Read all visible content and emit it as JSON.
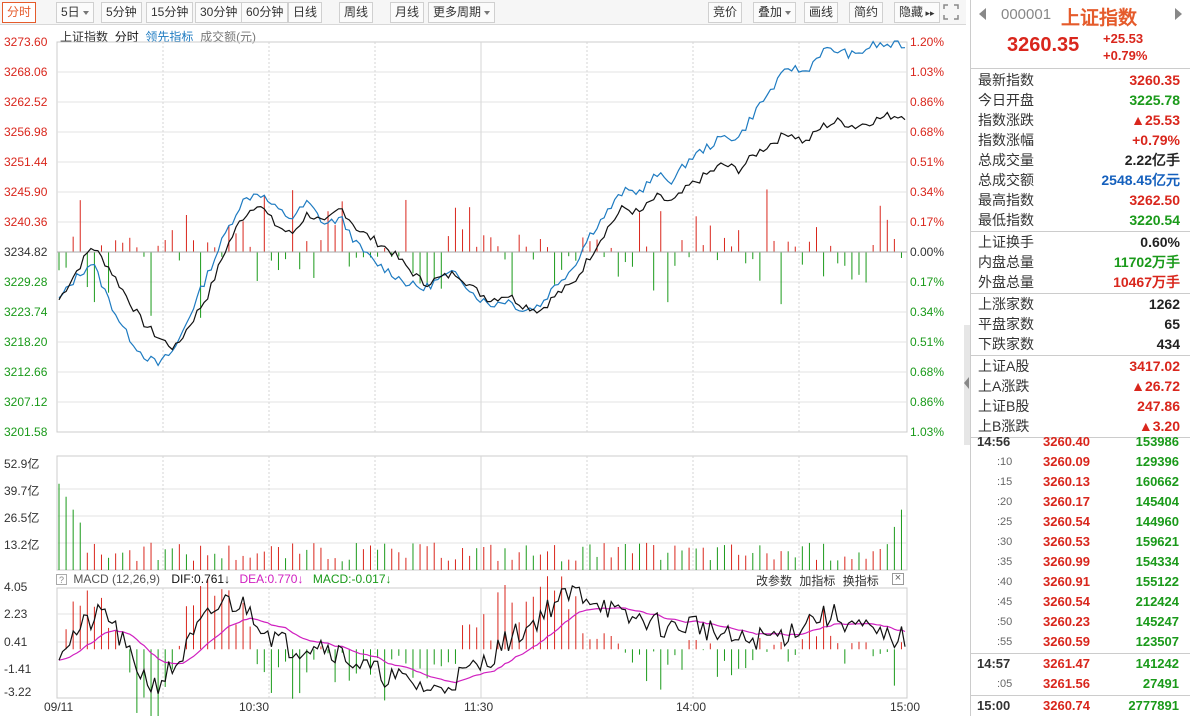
{
  "toolbar": {
    "left": [
      {
        "label": "分时",
        "active": true,
        "dropdown": false
      },
      {
        "label": "5日",
        "active": false,
        "dropdown": true
      },
      {
        "label": "5分钟",
        "active": false,
        "dropdown": false
      },
      {
        "label": "15分钟",
        "active": false,
        "dropdown": false
      },
      {
        "label": "30分钟",
        "active": false,
        "dropdown": false
      },
      {
        "label": "60分钟",
        "active": false,
        "dropdown": false
      },
      {
        "label": "日线",
        "active": false,
        "dropdown": false
      },
      {
        "label": "周线",
        "active": false,
        "dropdown": false
      },
      {
        "label": "月线",
        "active": false,
        "dropdown": false
      },
      {
        "label": "更多周期",
        "active": false,
        "dropdown": true
      }
    ],
    "right": [
      {
        "label": "竞价",
        "dropdown": false
      },
      {
        "label": "叠加",
        "dropdown": true
      },
      {
        "label": "画线",
        "dropdown": false
      },
      {
        "label": "简约",
        "dropdown": false
      },
      {
        "label": "隐藏",
        "dropdown": false,
        "icon": "double-right-arrow-icon"
      }
    ],
    "fullscreen_icon": "expand-icon"
  },
  "legend": {
    "name": "上证指数",
    "mode": "分时",
    "lead": "领先指标",
    "amount": "成交额(元)"
  },
  "price_axis": {
    "left": [
      "3273.60",
      "3268.06",
      "3262.52",
      "3256.98",
      "3251.44",
      "3245.90",
      "3240.36",
      "3234.82",
      "3229.28",
      "3223.74",
      "3218.20",
      "3212.66",
      "3207.12",
      "3201.58"
    ],
    "right": [
      "1.20%",
      "1.03%",
      "0.86%",
      "0.68%",
      "0.51%",
      "0.34%",
      "0.17%",
      "0.00%",
      "0.17%",
      "0.34%",
      "0.51%",
      "0.68%",
      "0.86%",
      "1.03%"
    ]
  },
  "volume_axis": [
    "52.9亿",
    "39.7亿",
    "26.5亿",
    "13.2亿"
  ],
  "macd": {
    "title": "MACD (12,26,9)",
    "dif": "DIF:0.761",
    "dea": "DEA:0.770",
    "macd": "MACD:-0.017",
    "actions": [
      "改参数",
      "加指标",
      "换指标"
    ],
    "axis": [
      "4.05",
      "2.23",
      "0.41",
      "-1.41",
      "-3.22"
    ]
  },
  "time_axis": [
    "09/11",
    "10:30",
    "11:30",
    "14:00",
    "15:00"
  ],
  "colors": {
    "up": "#d9261c",
    "down": "#1a9a1a",
    "lead": "#1e7bc1",
    "price": "#111111",
    "dif": "#111111",
    "dea": "#d020c0",
    "orange": "#e55b2b",
    "grid": "#e3e3e3"
  },
  "quote": {
    "code": "000001",
    "name": "上证指数",
    "price": "3260.35",
    "change": "+25.53",
    "pct": "+0.79%"
  },
  "stats": [
    {
      "k": "最新指数",
      "v": "3260.35",
      "c": "red"
    },
    {
      "k": "今日开盘",
      "v": "3225.78",
      "c": "green"
    },
    {
      "k": "指数涨跌",
      "v": "▲25.53",
      "c": "red"
    },
    {
      "k": "指数涨幅",
      "v": "+0.79%",
      "c": "red"
    },
    {
      "k": "总成交量",
      "v": "2.22亿手",
      "c": "dark"
    },
    {
      "k": "总成交额",
      "v": "2548.45亿元",
      "c": "blue"
    },
    {
      "k": "最高指数",
      "v": "3262.50",
      "c": "red"
    },
    {
      "k": "最低指数",
      "v": "3220.54",
      "c": "green"
    }
  ],
  "stats2": [
    {
      "k": "上证换手",
      "v": "0.60%",
      "c": "dark"
    },
    {
      "k": "内盘总量",
      "v": "11702万手",
      "c": "green"
    },
    {
      "k": "外盘总量",
      "v": "10467万手",
      "c": "red"
    }
  ],
  "stats3": [
    {
      "k": "上涨家数",
      "v": "1262",
      "c": "dark"
    },
    {
      "k": "平盘家数",
      "v": "65",
      "c": "dark"
    },
    {
      "k": "下跌家数",
      "v": "434",
      "c": "dark"
    }
  ],
  "stats4": [
    {
      "k": "上证A股",
      "v": "3417.02",
      "c": "red"
    },
    {
      "k": "上A涨跌",
      "v": "▲26.72",
      "c": "red"
    },
    {
      "k": "上证B股",
      "v": "247.86",
      "c": "red"
    },
    {
      "k": "上B涨跌",
      "v": "▲3.20",
      "c": "red"
    }
  ],
  "ticks": [
    {
      "t": "14:56",
      "p": "3260.40",
      "v": "153986"
    },
    {
      "t": ":10",
      "p": "3260.09",
      "v": "129396"
    },
    {
      "t": ":15",
      "p": "3260.13",
      "v": "160662"
    },
    {
      "t": ":20",
      "p": "3260.17",
      "v": "145404"
    },
    {
      "t": ":25",
      "p": "3260.54",
      "v": "144960"
    },
    {
      "t": ":30",
      "p": "3260.53",
      "v": "159621"
    },
    {
      "t": ":35",
      "p": "3260.99",
      "v": "154334"
    },
    {
      "t": ":40",
      "p": "3260.91",
      "v": "155122"
    },
    {
      "t": ":45",
      "p": "3260.54",
      "v": "212424"
    },
    {
      "t": ":50",
      "p": "3260.23",
      "v": "145247"
    },
    {
      "t": ":55",
      "p": "3260.59",
      "v": "123507"
    },
    {
      "t": "14:57",
      "p": "3261.47",
      "v": "141242"
    },
    {
      "t": ":05",
      "p": "3261.56",
      "v": "27491"
    },
    {
      "t": "15:00",
      "p": "3260.74",
      "v": "2777891"
    }
  ],
  "chart_data": {
    "type": "line",
    "title": "上证指数 分时",
    "prev_close": 3234.82,
    "ylim": [
      3201.58,
      3273.6
    ],
    "x_ticks": [
      "09/11",
      "10:30",
      "11:30",
      "14:00",
      "15:00"
    ],
    "series": [
      {
        "name": "上证指数",
        "values": [
          3226,
          3231,
          3236,
          3232,
          3227,
          3222,
          3219,
          3217,
          3222,
          3227,
          3235,
          3241,
          3244,
          3240,
          3238,
          3242,
          3240,
          3243,
          3239,
          3237,
          3235,
          3232,
          3229,
          3230,
          3231,
          3228,
          3226,
          3227,
          3225,
          3224,
          3227,
          3229,
          3234,
          3239,
          3243,
          3242,
          3245,
          3244,
          3247,
          3249,
          3251,
          3250,
          3253,
          3255,
          3257,
          3255,
          3258,
          3259,
          3258,
          3259,
          3260,
          3260
        ]
      },
      {
        "name": "领先指标",
        "values": [
          3226,
          3230,
          3233,
          3226,
          3220,
          3216,
          3214,
          3217,
          3224,
          3231,
          3238,
          3244,
          3246,
          3243,
          3241,
          3244,
          3240,
          3241,
          3236,
          3233,
          3231,
          3229,
          3228,
          3230,
          3231,
          3227,
          3225,
          3226,
          3224,
          3225,
          3229,
          3232,
          3238,
          3242,
          3246,
          3246,
          3249,
          3248,
          3252,
          3254,
          3256,
          3256,
          3261,
          3265,
          3269,
          3268,
          3272,
          3272,
          3271,
          3273,
          3273,
          3273
        ]
      }
    ],
    "volume_ylim": [
      0,
      52.9
    ],
    "macd": {
      "dif": 0.761,
      "dea": 0.77,
      "macd": -0.017,
      "ylim": [
        -3.22,
        4.05
      ]
    }
  }
}
